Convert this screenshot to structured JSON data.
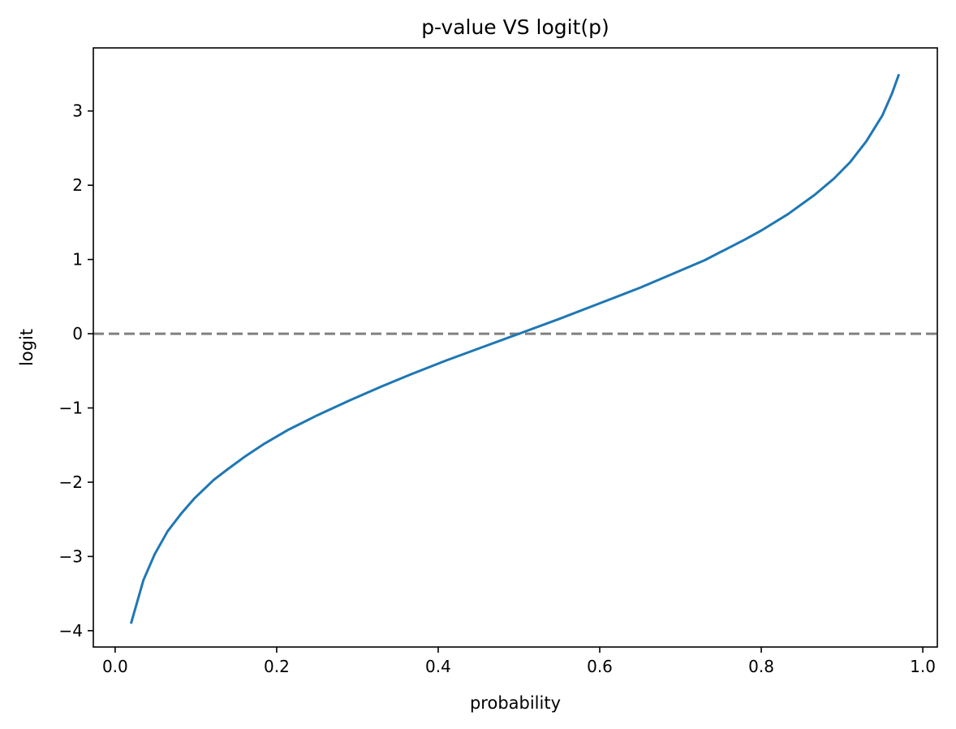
{
  "chart_data": {
    "type": "line",
    "title": "p-value VS logit(p)",
    "xlabel": "probability",
    "ylabel": "logit",
    "xlim": [
      -0.027,
      1.018
    ],
    "ylim": [
      -4.22,
      3.85
    ],
    "x_ticks": [
      0.0,
      0.2,
      0.4,
      0.6,
      0.8,
      1.0
    ],
    "x_tick_labels": [
      "0.0",
      "0.2",
      "0.4",
      "0.6",
      "0.8",
      "1.0"
    ],
    "y_ticks": [
      -4,
      -3,
      -2,
      -1,
      0,
      1,
      2,
      3
    ],
    "y_tick_labels": [
      "−4",
      "−3",
      "−2",
      "−1",
      "0",
      "1",
      "2",
      "3"
    ],
    "grid": false,
    "series": [
      {
        "color": "#1f77b4",
        "x": [
          0.02,
          0.035,
          0.049,
          0.065,
          0.082,
          0.098,
          0.122,
          0.14,
          0.16,
          0.185,
          0.215,
          0.25,
          0.29,
          0.33,
          0.37,
          0.41,
          0.45,
          0.5,
          0.55,
          0.6,
          0.65,
          0.7,
          0.73,
          0.78,
          0.8,
          0.833,
          0.866,
          0.89,
          0.91,
          0.93,
          0.95,
          0.962,
          0.97
        ],
        "y": [
          -3.89,
          -3.32,
          -2.97,
          -2.66,
          -2.42,
          -2.22,
          -1.97,
          -1.82,
          -1.66,
          -1.48,
          -1.29,
          -1.1,
          -0.9,
          -0.71,
          -0.53,
          -0.36,
          -0.2,
          0.0,
          0.2,
          0.41,
          0.62,
          0.85,
          0.99,
          1.27,
          1.39,
          1.61,
          1.87,
          2.09,
          2.31,
          2.59,
          2.94,
          3.24,
          3.48
        ]
      }
    ],
    "reference_line": {
      "y": 0,
      "color": "#808080",
      "style": "dashed"
    }
  }
}
